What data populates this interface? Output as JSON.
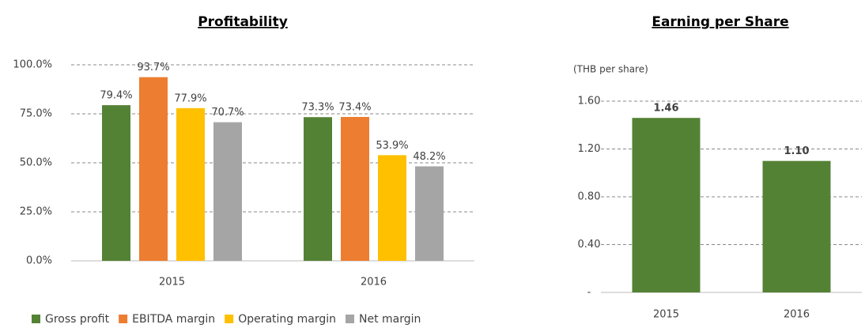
{
  "chart_data": [
    {
      "type": "bar",
      "title": "Profitability",
      "categories": [
        "2015",
        "2016"
      ],
      "series": [
        {
          "name": "Gross profit",
          "color": "#548235",
          "values": [
            79.4,
            73.3
          ],
          "value_labels": [
            "79.4%",
            "73.3%"
          ]
        },
        {
          "name": "EBITDA margin",
          "color": "#ed7d31",
          "values": [
            93.7,
            73.4
          ],
          "value_labels": [
            "93.7%",
            "73.4%"
          ]
        },
        {
          "name": "Operating margin",
          "color": "#ffc000",
          "values": [
            77.9,
            53.9
          ],
          "value_labels": [
            "77.9%",
            "53.9%"
          ]
        },
        {
          "name": "Net margin",
          "color": "#a5a5a5",
          "values": [
            70.7,
            48.2
          ],
          "value_labels": [
            "70.7%",
            "48.2%"
          ]
        }
      ],
      "ylim": [
        0,
        100
      ],
      "yticks": [
        {
          "value": 0,
          "label": "0.0%"
        },
        {
          "value": 25,
          "label": "25.0%"
        },
        {
          "value": 50,
          "label": "50.0%"
        },
        {
          "value": 75,
          "label": "75.0%"
        },
        {
          "value": 100,
          "label": "100.0%"
        }
      ],
      "grid": true,
      "legend": "bottom"
    },
    {
      "type": "bar",
      "title": "Earning per Share",
      "y_label": "(THB per share)",
      "categories": [
        "2015",
        "2016"
      ],
      "values": [
        1.46,
        1.1
      ],
      "value_labels": [
        "1.46",
        "1.10"
      ],
      "color": "#548235",
      "ylim": [
        0,
        1.6
      ],
      "yticks": [
        {
          "value": 0,
          "label": "-"
        },
        {
          "value": 0.4,
          "label": "0.40"
        },
        {
          "value": 0.8,
          "label": "0.80"
        },
        {
          "value": 1.2,
          "label": "1.20"
        },
        {
          "value": 1.6,
          "label": "1.60"
        }
      ],
      "grid": true
    }
  ]
}
